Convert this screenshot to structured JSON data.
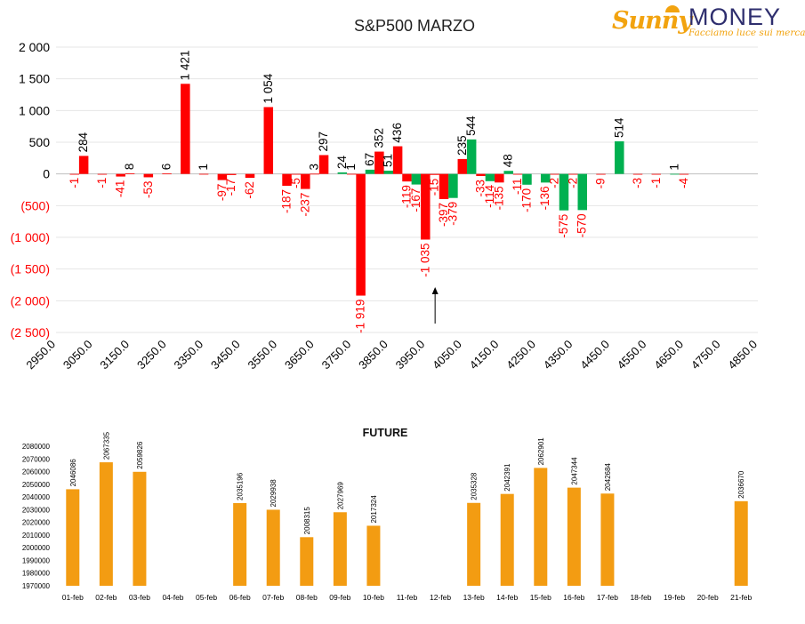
{
  "logo": {
    "brand_a": "Sunny",
    "brand_b": "MONEY",
    "tagline": "Facciamo luce sui mercati"
  },
  "colors": {
    "negative": "#ff0000",
    "positive": "#00b050",
    "future": "#f39c12",
    "text": "#000000",
    "neg_label": "#ff0000",
    "grid": "#e6e6e6"
  },
  "chart_data": [
    {
      "type": "bar",
      "title": "S&P500 MARZO",
      "ylim": [
        -2500,
        2000
      ],
      "y_ticks": [
        2000,
        1500,
        1000,
        500,
        0,
        -500,
        -1000,
        -1500,
        -2000,
        -2500
      ],
      "y_tick_labels": [
        "2 000",
        "1 500",
        "1 000",
        "500",
        "0",
        "(500)",
        "(1 000)",
        "(1 500)",
        "(2 000)",
        "(2 500)"
      ],
      "x_ticks": [
        2950,
        3050,
        3150,
        3250,
        3350,
        3450,
        3550,
        3650,
        3750,
        3850,
        3950,
        4050,
        4150,
        4250,
        4350,
        4450,
        4550,
        4650,
        4750,
        4850
      ],
      "x_tick_labels": [
        "2950.0",
        "3050.0",
        "3150.0",
        "3250.0",
        "3350.0",
        "3450.0",
        "3550.0",
        "3650.0",
        "3750.0",
        "3850.0",
        "3950.0",
        "4050.0",
        "4150.0",
        "4250.0",
        "4350.0",
        "4450.0",
        "4550.0",
        "4650.0",
        "4750.0",
        "4850.0"
      ],
      "bars": [
        {
          "x": 3000,
          "value": -1,
          "label": "-1",
          "color": "red"
        },
        {
          "x": 3025,
          "value": 284,
          "label": "284",
          "color": "red"
        },
        {
          "x": 3075,
          "value": -1,
          "label": "-1",
          "color": "red"
        },
        {
          "x": 3125,
          "value": -41,
          "label": "-41",
          "color": "red"
        },
        {
          "x": 3150,
          "value": 8,
          "label": "8",
          "color": "red"
        },
        {
          "x": 3200,
          "value": -53,
          "label": "-53",
          "color": "red"
        },
        {
          "x": 3250,
          "value": 6,
          "label": "6",
          "color": "red"
        },
        {
          "x": 3300,
          "value": 1421,
          "label": "1 421",
          "color": "red"
        },
        {
          "x": 3350,
          "value": 1,
          "label": "1",
          "color": "red"
        },
        {
          "x": 3400,
          "value": -97,
          "label": "-97",
          "color": "red"
        },
        {
          "x": 3425,
          "value": -17,
          "label": "-17",
          "color": "red"
        },
        {
          "x": 3475,
          "value": -62,
          "label": "-62",
          "color": "red"
        },
        {
          "x": 3525,
          "value": 1054,
          "label": "1 054",
          "color": "red"
        },
        {
          "x": 3575,
          "value": -187,
          "label": "-187",
          "color": "red"
        },
        {
          "x": 3600,
          "value": -5,
          "label": "-5",
          "color": "red"
        },
        {
          "x": 3625,
          "value": -237,
          "label": "-237",
          "color": "red"
        },
        {
          "x": 3650,
          "value": 3,
          "label": "3",
          "color": "red"
        },
        {
          "x": 3675,
          "value": 297,
          "label": "297",
          "color": "red"
        },
        {
          "x": 3725,
          "value": 24,
          "label": "24",
          "color": "green"
        },
        {
          "x": 3750,
          "value": 1,
          "label": "1",
          "color": "red"
        },
        {
          "x": 3775,
          "value": -1919,
          "label": "-1 919",
          "color": "red"
        },
        {
          "x": 3800,
          "value": 67,
          "label": "67",
          "color": "green"
        },
        {
          "x": 3825,
          "value": 352,
          "label": "352",
          "color": "red"
        },
        {
          "x": 3850,
          "value": 51,
          "label": "51",
          "color": "green"
        },
        {
          "x": 3875,
          "value": 436,
          "label": "436",
          "color": "red"
        },
        {
          "x": 3900,
          "value": -119,
          "label": "-119",
          "color": "red"
        },
        {
          "x": 3925,
          "value": -167,
          "label": "-167",
          "color": "green"
        },
        {
          "x": 3950,
          "value": -1035,
          "label": "-1 035",
          "color": "red"
        },
        {
          "x": 3975,
          "value": -15,
          "label": "-15",
          "color": "red"
        },
        {
          "x": 4000,
          "value": -397,
          "label": "-397",
          "color": "red"
        },
        {
          "x": 4025,
          "value": -379,
          "label": "-379",
          "color": "green"
        },
        {
          "x": 4050,
          "value": 235,
          "label": "235",
          "color": "red"
        },
        {
          "x": 4075,
          "value": 544,
          "label": "544",
          "color": "green"
        },
        {
          "x": 4100,
          "value": -33,
          "label": "-33",
          "color": "red"
        },
        {
          "x": 4125,
          "value": -114,
          "label": "-114",
          "color": "green"
        },
        {
          "x": 4150,
          "value": -135,
          "label": "-135",
          "color": "red"
        },
        {
          "x": 4175,
          "value": 48,
          "label": "48",
          "color": "green"
        },
        {
          "x": 4200,
          "value": -11,
          "label": "-11",
          "color": "red"
        },
        {
          "x": 4225,
          "value": -170,
          "label": "-170",
          "color": "green"
        },
        {
          "x": 4275,
          "value": -136,
          "label": "-136",
          "color": "green"
        },
        {
          "x": 4300,
          "value": -2,
          "label": "-2",
          "color": "red"
        },
        {
          "x": 4325,
          "value": -575,
          "label": "-575",
          "color": "green"
        },
        {
          "x": 4350,
          "value": -2,
          "label": "-2",
          "color": "red"
        },
        {
          "x": 4375,
          "value": -570,
          "label": "-570",
          "color": "green"
        },
        {
          "x": 4425,
          "value": -9,
          "label": "-9",
          "color": "red"
        },
        {
          "x": 4475,
          "value": 514,
          "label": "514",
          "color": "green"
        },
        {
          "x": 4525,
          "value": -3,
          "label": "-3",
          "color": "red"
        },
        {
          "x": 4575,
          "value": -1,
          "label": "-1",
          "color": "red"
        },
        {
          "x": 4625,
          "value": 1,
          "label": "1",
          "color": "green"
        },
        {
          "x": 4650,
          "value": -4,
          "label": "-4",
          "color": "red"
        }
      ],
      "marker": {
        "x": 3975,
        "direction": "up"
      },
      "grid": true,
      "legend": "none"
    },
    {
      "type": "bar",
      "title": "FUTURE",
      "ylim": [
        1970000,
        2080000
      ],
      "y_ticks": [
        2080000,
        2070000,
        2060000,
        2050000,
        2040000,
        2030000,
        2020000,
        2010000,
        2000000,
        1990000,
        1980000,
        1970000
      ],
      "y_tick_labels": [
        "2080000",
        "2070000",
        "2060000",
        "2050000",
        "2040000",
        "2030000",
        "2020000",
        "2010000",
        "2000000",
        "1990000",
        "1980000",
        "1970000"
      ],
      "categories": [
        "01-feb",
        "02-feb",
        "03-feb",
        "04-feb",
        "05-feb",
        "06-feb",
        "07-feb",
        "08-feb",
        "09-feb",
        "10-feb",
        "11-feb",
        "12-feb",
        "13-feb",
        "14-feb",
        "15-feb",
        "16-feb",
        "17-feb",
        "18-feb",
        "19-feb",
        "20-feb",
        "21-feb"
      ],
      "values": [
        2046086,
        2067335,
        2059826,
        null,
        null,
        2035196,
        2029938,
        2008315,
        2027969,
        2017324,
        null,
        null,
        2035328,
        2042391,
        2062901,
        2047344,
        2042684,
        null,
        null,
        null,
        2036670
      ],
      "value_labels": [
        "2046086",
        "2067335",
        "2059826",
        "",
        "",
        "2035196",
        "2029938",
        "2008315",
        "2027969",
        "2017324",
        "",
        "",
        "2035328",
        "2042391",
        "2062901",
        "2047344",
        "2042684",
        "",
        "",
        "",
        "2036670"
      ],
      "grid": false,
      "legend": "none"
    }
  ]
}
